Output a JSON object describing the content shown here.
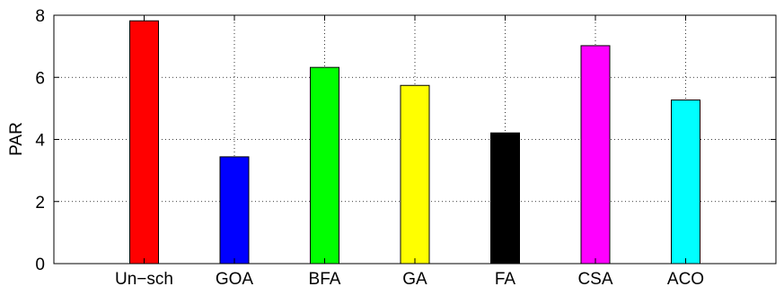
{
  "chart_data": {
    "type": "bar",
    "title": "",
    "xlabel": "",
    "ylabel": "PAR",
    "categories": [
      "Un−sch",
      "GOA",
      "BFA",
      "GA",
      "FA",
      "CSA",
      "ACO"
    ],
    "values": [
      7.82,
      3.44,
      6.32,
      5.74,
      4.21,
      7.02,
      5.27
    ],
    "colors": [
      "#ff0000",
      "#0000ff",
      "#00ff00",
      "#ffff00",
      "#000000",
      "#ff00ff",
      "#00ffff"
    ],
    "ylim": [
      0,
      8
    ],
    "yticks": [
      "0",
      "2",
      "4",
      "6",
      "8"
    ],
    "grid": true,
    "legend": "none"
  }
}
